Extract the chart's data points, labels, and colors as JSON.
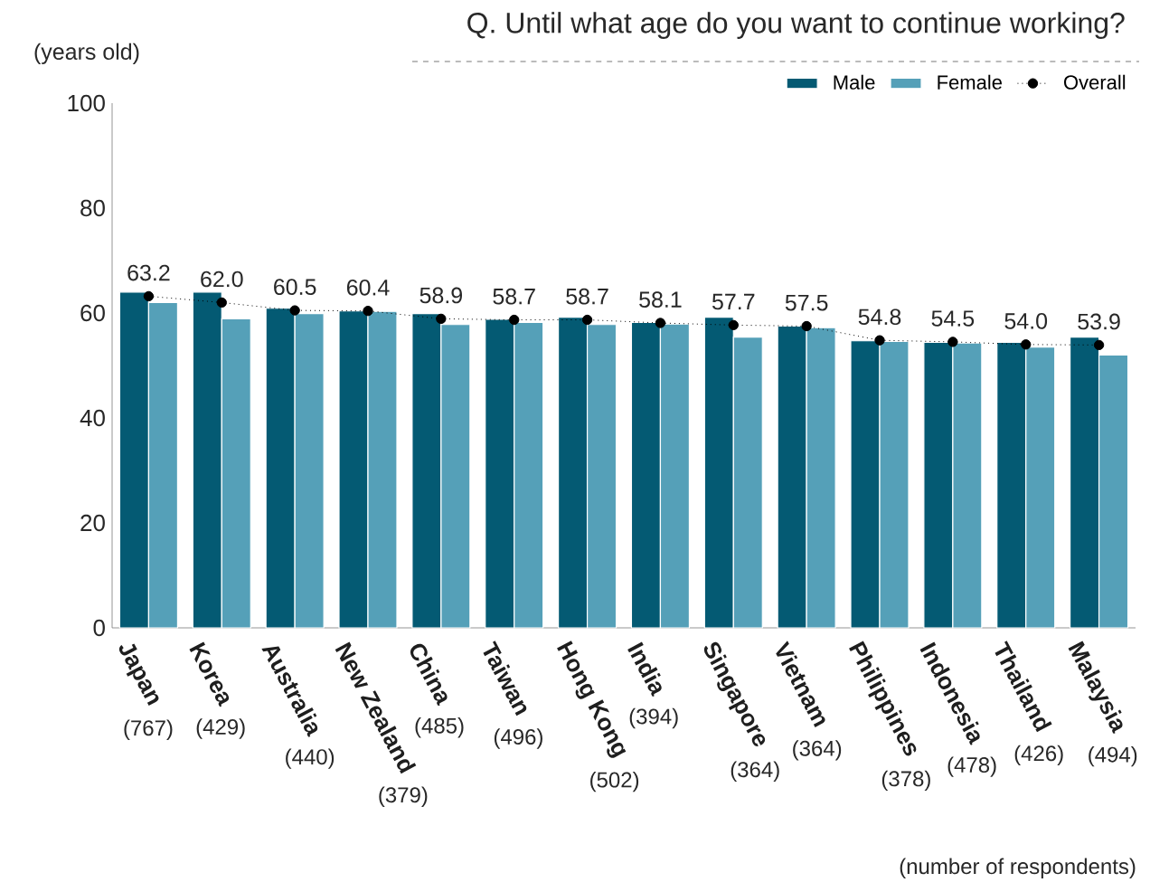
{
  "chart_data": {
    "type": "bar",
    "title": "Q. Until what age do you want to continue working?",
    "ylabel": "(years old)",
    "categories": [
      "Japan",
      "Korea",
      "Australia",
      "New Zealand",
      "China",
      "Taiwan",
      "Hong Kong",
      "India",
      "Singapore",
      "Vietnam",
      "Philippines",
      "Indonesia",
      "Thailand",
      "Malaysia"
    ],
    "series": [
      {
        "name": "Male",
        "color": "#045a73",
        "values": [
          64.0,
          64.0,
          60.9,
          60.4,
          59.9,
          58.8,
          59.2,
          58.2,
          59.2,
          57.5,
          54.7,
          54.4,
          54.4,
          55.4
        ]
      },
      {
        "name": "Female",
        "color": "#55a0b8",
        "values": [
          62.0,
          58.9,
          59.9,
          60.3,
          57.8,
          58.2,
          57.8,
          57.9,
          55.4,
          57.2,
          54.6,
          54.3,
          53.5,
          52.0
        ]
      },
      {
        "name": "Overall",
        "type": "line",
        "color": "#000000",
        "marker": "circle",
        "line_style": "dotted",
        "values": [
          63.2,
          62.0,
          60.5,
          60.4,
          58.9,
          58.7,
          58.7,
          58.1,
          57.7,
          57.5,
          54.8,
          54.5,
          54.0,
          53.9
        ],
        "value_labels": [
          "63.2",
          "62.0",
          "60.5",
          "60.4",
          "58.9",
          "58.7",
          "58.7",
          "58.1",
          "57.7",
          "57.5",
          "54.8",
          "54.5",
          "54.0",
          "53.9"
        ]
      }
    ],
    "ylim": [
      0,
      100
    ],
    "yticks": [
      0,
      20,
      40,
      60,
      80,
      100
    ],
    "grid": false,
    "legend": "top right",
    "annotations": [
      "(767)",
      "(429)",
      "(440)",
      "(379)",
      "(485)",
      "(496)",
      "(502)",
      "(394)",
      "(364)",
      "(364)",
      "(378)",
      "(478)",
      "(426)",
      "(494)",
      "(number of respondents)"
    ]
  }
}
